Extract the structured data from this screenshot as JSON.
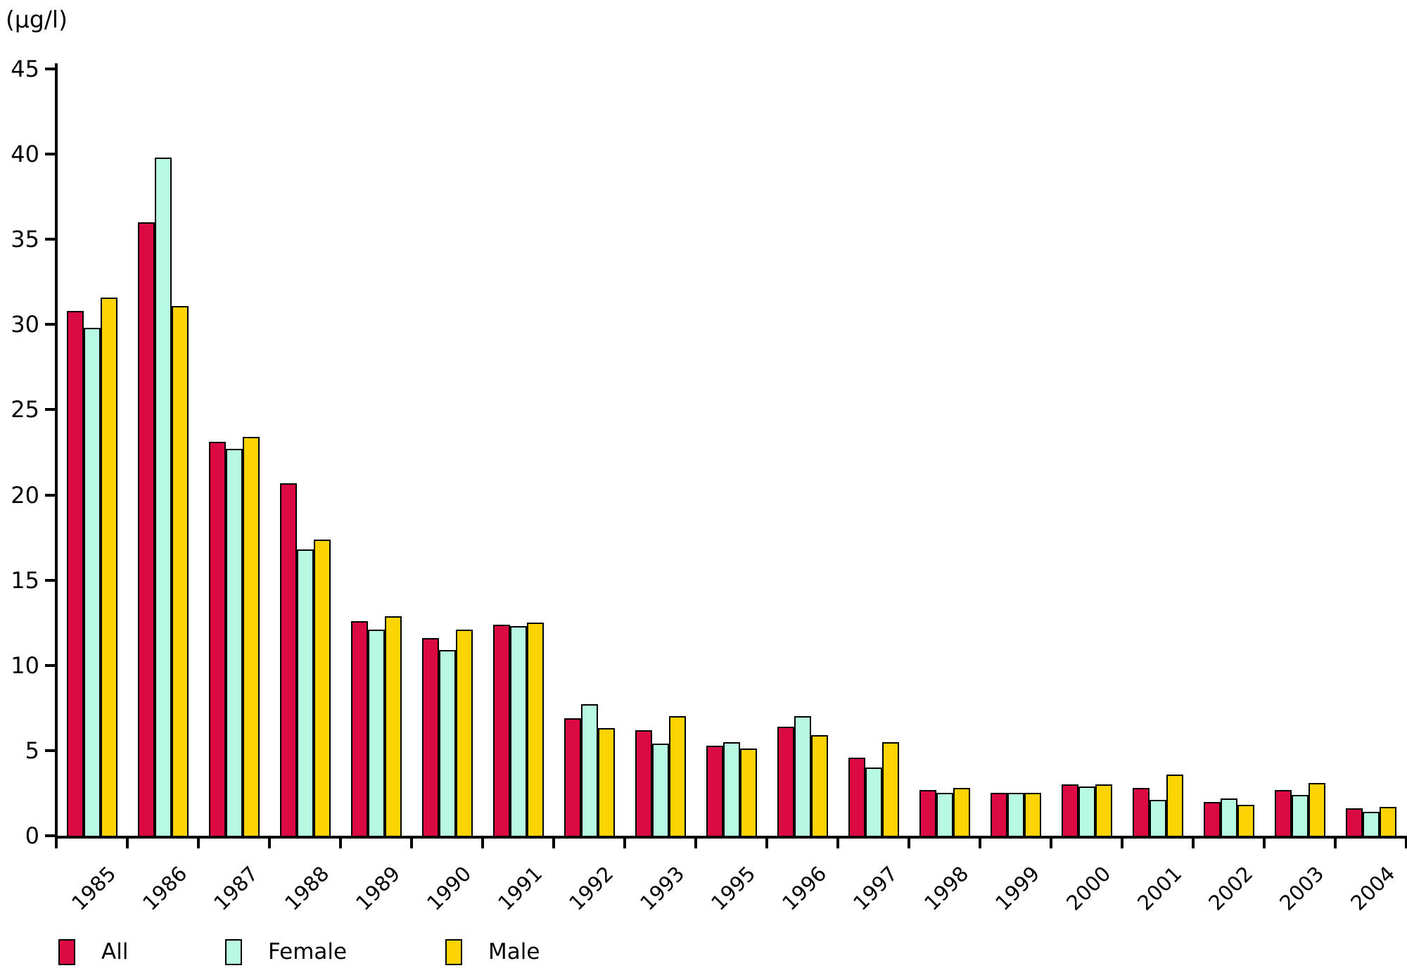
{
  "chart_data": {
    "type": "bar",
    "title": "",
    "unit_label": "(µg/l)",
    "ylabel": "(µg/l)",
    "xlabel": "",
    "ylim": [
      0,
      45
    ],
    "yticks": [
      0,
      5,
      10,
      15,
      20,
      25,
      30,
      35,
      40,
      45
    ],
    "grid": false,
    "legend_position": "bottom-left",
    "categories": [
      "1985",
      "1986",
      "1987",
      "1988",
      "1989",
      "1990",
      "1991",
      "1992",
      "1993",
      "1995",
      "1996",
      "1997",
      "1998",
      "1999",
      "2000",
      "2001",
      "2002",
      "2003",
      "2004"
    ],
    "series": [
      {
        "name": "All",
        "color": "#DC0A43",
        "values": [
          30.8,
          36.0,
          23.1,
          20.7,
          12.6,
          11.6,
          12.4,
          6.9,
          6.2,
          5.3,
          6.4,
          4.6,
          2.7,
          2.5,
          3.0,
          2.8,
          2.0,
          2.7,
          1.6
        ]
      },
      {
        "name": "Female",
        "color": "#B7F9E3",
        "values": [
          29.8,
          39.8,
          22.7,
          16.8,
          12.1,
          10.9,
          12.3,
          7.7,
          5.4,
          5.5,
          7.0,
          4.0,
          2.5,
          2.5,
          2.9,
          2.1,
          2.2,
          2.4,
          1.4
        ]
      },
      {
        "name": "Male",
        "color": "#FCD303",
        "values": [
          31.6,
          31.1,
          23.4,
          17.4,
          12.9,
          12.1,
          12.5,
          6.3,
          7.0,
          5.1,
          5.9,
          5.5,
          2.8,
          2.5,
          3.0,
          3.6,
          1.8,
          3.1,
          1.7
        ]
      }
    ]
  },
  "legend": {
    "items": [
      {
        "label": "All",
        "color": "#DC0A43"
      },
      {
        "label": "Female",
        "color": "#B7F9E3"
      },
      {
        "label": "Male",
        "color": "#FCD303"
      }
    ]
  }
}
